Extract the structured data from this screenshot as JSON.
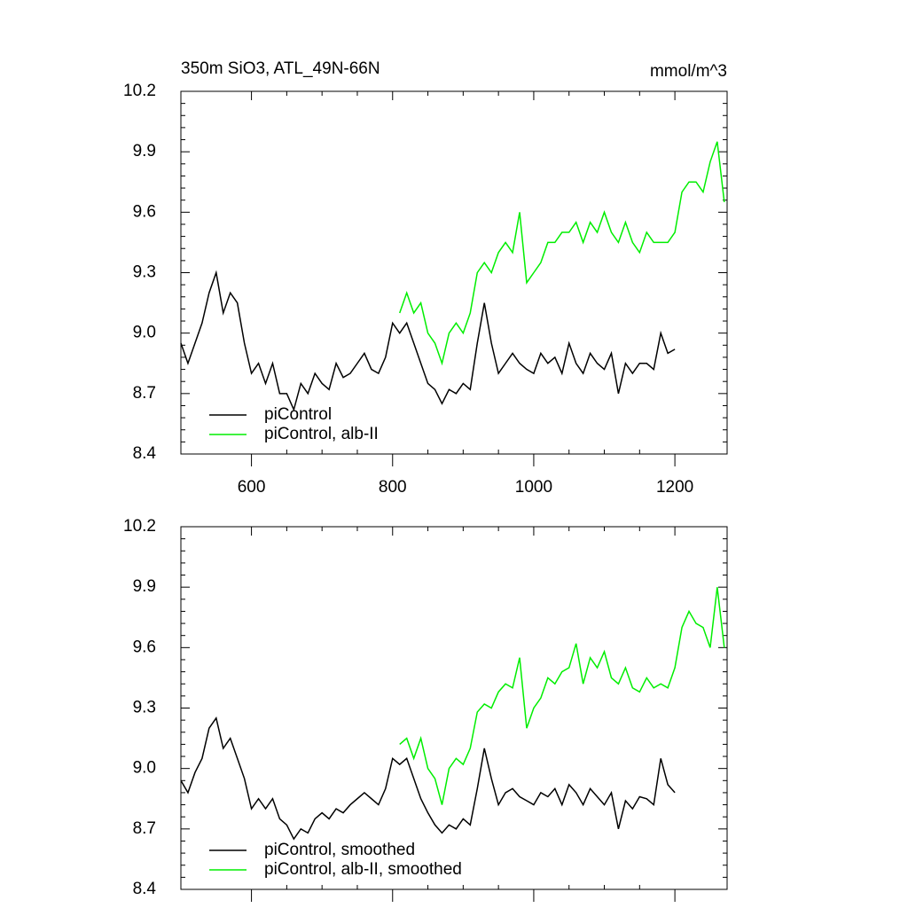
{
  "chart_data": [
    {
      "type": "line",
      "title": "350m SiO3, ATL_49N-66N",
      "units": "mmol/m^3",
      "xlim": [
        500,
        1274
      ],
      "ylim": [
        8.4,
        10.2
      ],
      "xticks": [
        600,
        800,
        1000,
        1200
      ],
      "yticks": [
        8.4,
        8.7,
        {
          "value": 9.0,
          "label": "9.0"
        },
        9.3,
        9.6,
        9.9,
        10.2
      ],
      "show_xtick_labels": true,
      "series": [
        {
          "name": "piControl",
          "color": "#000000",
          "x": [
            500,
            510,
            520,
            530,
            540,
            550,
            560,
            570,
            580,
            590,
            600,
            610,
            620,
            630,
            640,
            650,
            660,
            670,
            680,
            690,
            700,
            710,
            720,
            730,
            740,
            750,
            760,
            770,
            780,
            790,
            800,
            810,
            820,
            830,
            840,
            850,
            860,
            870,
            880,
            890,
            900,
            910,
            920,
            930,
            940,
            950,
            960,
            970,
            980,
            990,
            1000,
            1010,
            1020,
            1030,
            1040,
            1050,
            1060,
            1070,
            1080,
            1090,
            1100,
            1110,
            1120,
            1130,
            1140,
            1150,
            1160,
            1170,
            1180,
            1190,
            1200
          ],
          "values": [
            8.95,
            8.85,
            8.95,
            9.05,
            9.2,
            9.3,
            9.1,
            9.2,
            9.15,
            8.95,
            8.8,
            8.85,
            8.75,
            8.85,
            8.7,
            8.7,
            8.62,
            8.75,
            8.7,
            8.8,
            8.75,
            8.72,
            8.85,
            8.78,
            8.8,
            8.85,
            8.9,
            8.82,
            8.8,
            8.88,
            9.05,
            9.0,
            9.05,
            8.95,
            8.85,
            8.75,
            8.72,
            8.65,
            8.72,
            8.7,
            8.75,
            8.72,
            8.95,
            9.15,
            8.95,
            8.8,
            8.85,
            8.9,
            8.85,
            8.82,
            8.8,
            8.9,
            8.85,
            8.88,
            8.8,
            8.95,
            8.85,
            8.8,
            8.9,
            8.85,
            8.82,
            8.9,
            8.7,
            8.85,
            8.8,
            8.85,
            8.85,
            8.82,
            9.0,
            8.9,
            8.92
          ]
        },
        {
          "name": "piControl, alb-II",
          "color": "#00ee00",
          "x": [
            810,
            820,
            830,
            840,
            850,
            860,
            870,
            880,
            890,
            900,
            910,
            920,
            930,
            940,
            950,
            960,
            970,
            980,
            990,
            1000,
            1010,
            1020,
            1030,
            1040,
            1050,
            1060,
            1070,
            1080,
            1090,
            1100,
            1110,
            1120,
            1130,
            1140,
            1150,
            1160,
            1170,
            1180,
            1190,
            1200,
            1210,
            1220,
            1230,
            1240,
            1250,
            1260,
            1270
          ],
          "values": [
            9.1,
            9.2,
            9.1,
            9.15,
            9.0,
            8.95,
            8.85,
            9.0,
            9.05,
            9.0,
            9.1,
            9.3,
            9.35,
            9.3,
            9.4,
            9.45,
            9.4,
            9.6,
            9.25,
            9.3,
            9.35,
            9.45,
            9.45,
            9.5,
            9.5,
            9.55,
            9.45,
            9.55,
            9.5,
            9.6,
            9.5,
            9.45,
            9.55,
            9.45,
            9.4,
            9.5,
            9.45,
            9.45,
            9.45,
            9.5,
            9.7,
            9.75,
            9.75,
            9.7,
            9.85,
            9.95,
            9.65
          ]
        }
      ]
    },
    {
      "type": "line",
      "xlim": [
        500,
        1274
      ],
      "ylim": [
        8.4,
        10.2
      ],
      "xticks": [
        600,
        800,
        1000,
        1200
      ],
      "yticks": [
        8.4,
        8.7,
        {
          "value": 9.0,
          "label": "9.0"
        },
        9.3,
        9.6,
        9.9,
        10.2
      ],
      "show_xtick_labels": false,
      "series": [
        {
          "name": "piControl, smoothed",
          "color": "#000000",
          "x": [
            500,
            510,
            520,
            530,
            540,
            550,
            560,
            570,
            580,
            590,
            600,
            610,
            620,
            630,
            640,
            650,
            660,
            670,
            680,
            690,
            700,
            710,
            720,
            730,
            740,
            750,
            760,
            770,
            780,
            790,
            800,
            810,
            820,
            830,
            840,
            850,
            860,
            870,
            880,
            890,
            900,
            910,
            920,
            930,
            940,
            950,
            960,
            970,
            980,
            990,
            1000,
            1010,
            1020,
            1030,
            1040,
            1050,
            1060,
            1070,
            1080,
            1090,
            1100,
            1110,
            1120,
            1130,
            1140,
            1150,
            1160,
            1170,
            1180,
            1190,
            1200
          ],
          "values": [
            8.94,
            8.88,
            8.98,
            9.05,
            9.2,
            9.25,
            9.1,
            9.15,
            9.05,
            8.95,
            8.8,
            8.85,
            8.8,
            8.85,
            8.75,
            8.72,
            8.65,
            8.7,
            8.68,
            8.75,
            8.78,
            8.75,
            8.8,
            8.78,
            8.82,
            8.85,
            8.88,
            8.85,
            8.82,
            8.9,
            9.05,
            9.02,
            9.05,
            8.95,
            8.85,
            8.78,
            8.72,
            8.68,
            8.72,
            8.7,
            8.75,
            8.72,
            8.9,
            9.1,
            8.95,
            8.82,
            8.88,
            8.9,
            8.86,
            8.84,
            8.82,
            8.88,
            8.86,
            8.9,
            8.82,
            8.92,
            8.88,
            8.82,
            8.9,
            8.86,
            8.82,
            8.88,
            8.7,
            8.84,
            8.8,
            8.86,
            8.85,
            8.82,
            9.05,
            8.92,
            8.88
          ]
        },
        {
          "name": "piControl, alb-II, smoothed",
          "color": "#00ee00",
          "x": [
            810,
            820,
            830,
            840,
            850,
            860,
            870,
            880,
            890,
            900,
            910,
            920,
            930,
            940,
            950,
            960,
            970,
            980,
            990,
            1000,
            1010,
            1020,
            1030,
            1040,
            1050,
            1060,
            1070,
            1080,
            1090,
            1100,
            1110,
            1120,
            1130,
            1140,
            1150,
            1160,
            1170,
            1180,
            1190,
            1200,
            1210,
            1220,
            1230,
            1240,
            1250,
            1260,
            1270
          ],
          "values": [
            9.12,
            9.15,
            9.05,
            9.15,
            9.0,
            8.95,
            8.82,
            9.0,
            9.05,
            9.02,
            9.1,
            9.28,
            9.32,
            9.3,
            9.38,
            9.42,
            9.4,
            9.55,
            9.2,
            9.3,
            9.35,
            9.45,
            9.42,
            9.48,
            9.5,
            9.62,
            9.42,
            9.55,
            9.5,
            9.58,
            9.45,
            9.42,
            9.5,
            9.4,
            9.38,
            9.45,
            9.4,
            9.42,
            9.4,
            9.5,
            9.7,
            9.78,
            9.72,
            9.7,
            9.6,
            9.9,
            9.6
          ]
        }
      ]
    }
  ]
}
